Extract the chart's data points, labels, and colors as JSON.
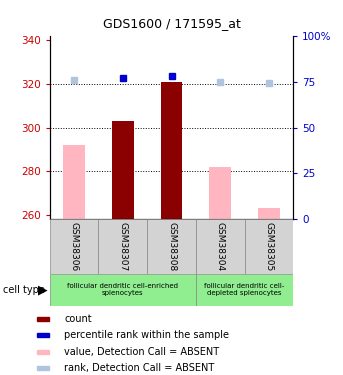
{
  "title": "GDS1600 / 171595_at",
  "samples": [
    "GSM38306",
    "GSM38307",
    "GSM38308",
    "GSM38304",
    "GSM38305"
  ],
  "count_values": [
    null,
    303,
    321,
    null,
    null
  ],
  "count_absent_values": [
    292,
    null,
    null,
    282,
    263
  ],
  "rank_values": [
    null,
    77,
    78,
    null,
    null
  ],
  "rank_absent_values": [
    76,
    null,
    null,
    75,
    74
  ],
  "ylim_left": [
    258,
    342
  ],
  "ylim_right": [
    0,
    100
  ],
  "yticks_left": [
    260,
    280,
    300,
    320,
    340
  ],
  "yticks_right": [
    0,
    25,
    50,
    75,
    100
  ],
  "cell_type_group1_label": "follicular dendritic cell-enriched\nsplenocytes",
  "cell_type_group2_label": "follicular dendritic cell-\ndepleted splenocytes",
  "cell_type_color": "#90EE90",
  "sample_box_color": "#D3D3D3",
  "bar_color_count": "#8B0000",
  "bar_color_absent": "#FFB6C1",
  "dot_color_rank": "#0000CD",
  "dot_color_rank_absent": "#B0C4DE",
  "left_axis_color": "#CC0000",
  "right_axis_color": "#0000CC",
  "legend_items": [
    {
      "label": "count",
      "color": "#8B0000"
    },
    {
      "label": "percentile rank within the sample",
      "color": "#0000CD"
    },
    {
      "label": "value, Detection Call = ABSENT",
      "color": "#FFB6C1"
    },
    {
      "label": "rank, Detection Call = ABSENT",
      "color": "#B0C4DE"
    }
  ]
}
